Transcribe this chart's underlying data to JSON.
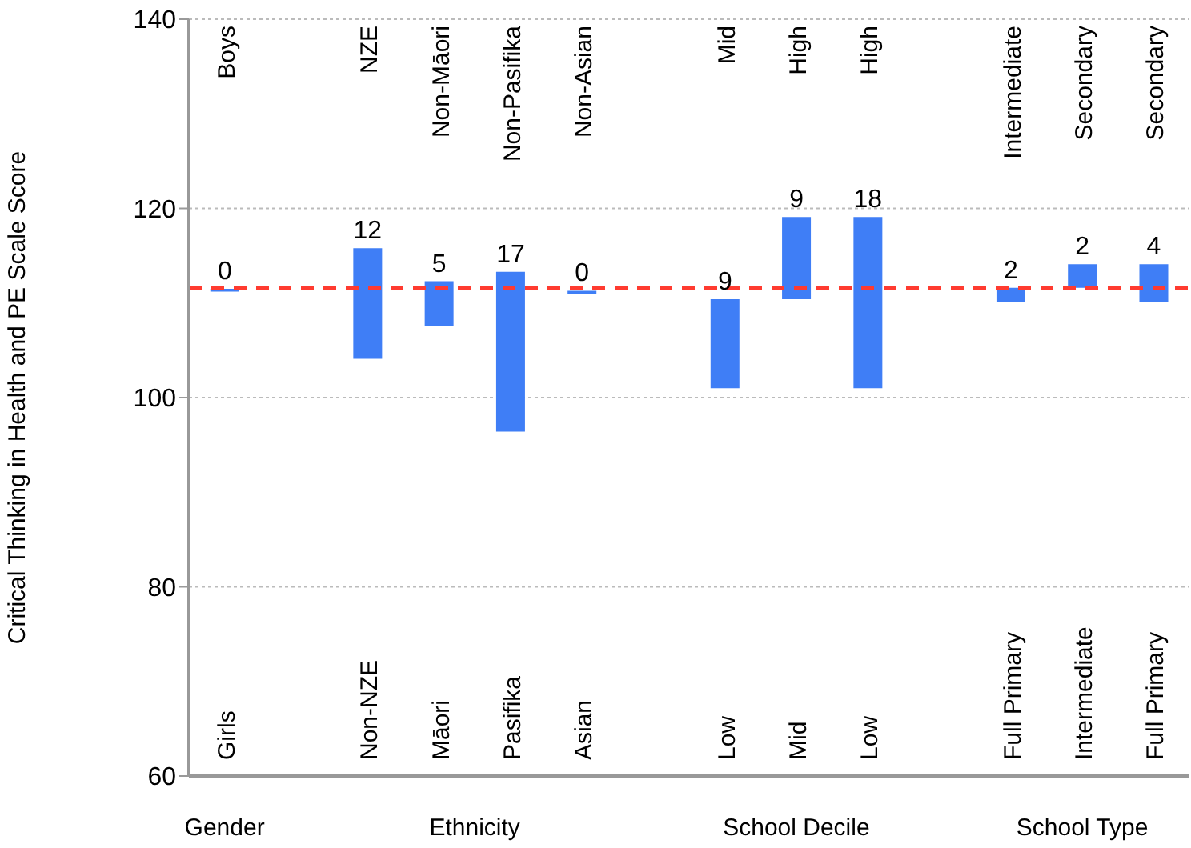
{
  "chart_data": {
    "type": "bar",
    "ylabel": "Critical Thinking in Health and PE Scale Score",
    "categories": [
      "Girls",
      null,
      "Non-NZE",
      "Māori",
      "Pasifika",
      "Asian",
      null,
      "Low",
      "Mid",
      "Low",
      null,
      "Full Primary",
      "Intermediate",
      "Full Primary"
    ],
    "base": [
      111.2,
      null,
      104.1,
      107.6,
      96.4,
      111.0,
      null,
      101.0,
      110.4,
      101.0,
      null,
      110.1,
      111.6,
      110.1
    ],
    "values": [
      0.3,
      null,
      11.7,
      4.7,
      16.9,
      0.3,
      null,
      9.4,
      8.7,
      18.1,
      null,
      1.5,
      2.5,
      4.0
    ],
    "value_labels": [
      "0",
      null,
      "12",
      "5",
      "17",
      "0",
      null,
      "9",
      "9",
      "18",
      null,
      "2",
      "2",
      "4"
    ],
    "color": "#3f7ef6",
    "ylim": [
      60,
      140
    ],
    "yticks": [
      60,
      80,
      100,
      120,
      140
    ],
    "grid": "y",
    "ref_lines": [
      {
        "axis": "y",
        "value": 111.6,
        "color": "#ff3b30",
        "line_style": "dashed"
      }
    ],
    "annotations": [
      "Boys",
      "NZE",
      "Non-Māori",
      "Non-Pasifika",
      "Non-Asian",
      "Mid",
      "High",
      "High",
      "Intermediate",
      "Secondary",
      "Secondary",
      "Gender",
      "Ethnicity",
      "School Decile",
      "School Type"
    ]
  }
}
